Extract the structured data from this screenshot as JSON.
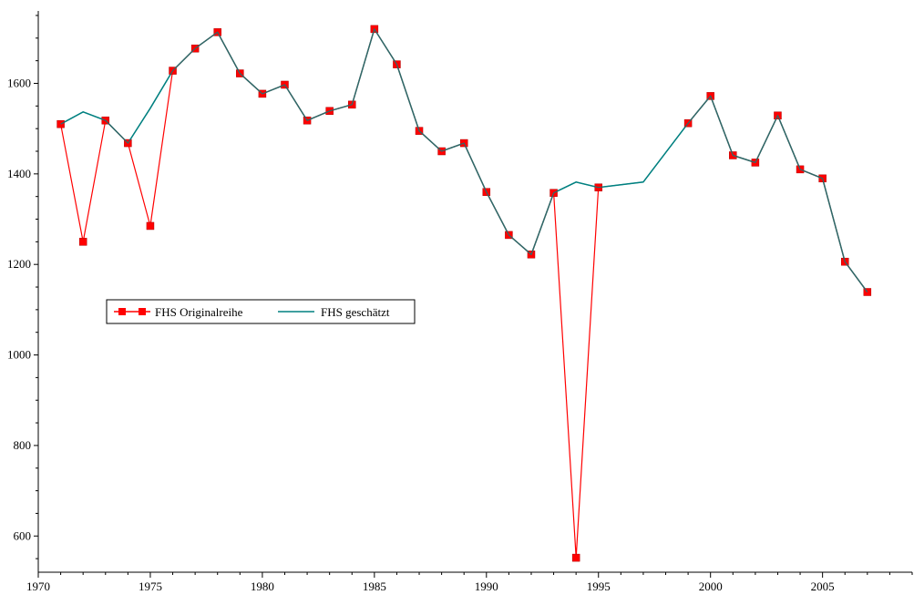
{
  "chart_data": {
    "type": "line",
    "title": "",
    "xlabel": "",
    "ylabel": "",
    "xlim": [
      1970,
      2009
    ],
    "ylim": [
      520,
      1760
    ],
    "x_ticks": [
      1970,
      1975,
      1980,
      1985,
      1990,
      1995,
      2000,
      2005
    ],
    "y_ticks": [
      600,
      800,
      1000,
      1200,
      1400,
      1600
    ],
    "grid": false,
    "legend_position": "middle-left",
    "series": [
      {
        "name": "FHS Originalreihe",
        "color": "#ff0000",
        "marker": "square",
        "points": [
          [
            1971,
            1510
          ],
          [
            1972,
            1250
          ],
          [
            1973,
            1518
          ],
          [
            1974,
            1468
          ],
          [
            1975,
            1285
          ],
          [
            1976,
            1628
          ],
          [
            1977,
            1677
          ],
          [
            1978,
            1713
          ],
          [
            1979,
            1622
          ],
          [
            1980,
            1577
          ],
          [
            1981,
            1597
          ],
          [
            1982,
            1518
          ],
          [
            1983,
            1539
          ],
          [
            1984,
            1553
          ],
          [
            1985,
            1720
          ],
          [
            1986,
            1642
          ],
          [
            1987,
            1495
          ],
          [
            1988,
            1450
          ],
          [
            1989,
            1468
          ],
          [
            1990,
            1360
          ],
          [
            1991,
            1265
          ],
          [
            1992,
            1222
          ],
          [
            1993,
            1358
          ],
          [
            1994,
            552
          ],
          [
            1995,
            1370
          ]
        ],
        "points_segment2": [
          [
            1999,
            1512
          ],
          [
            2000,
            1572
          ],
          [
            2001,
            1441
          ],
          [
            2002,
            1425
          ],
          [
            2003,
            1529
          ],
          [
            2004,
            1410
          ],
          [
            2005,
            1390
          ],
          [
            2006,
            1206
          ],
          [
            2007,
            1139
          ]
        ]
      },
      {
        "name": "FHS geschätzt",
        "color": "#008080",
        "points": [
          [
            1971,
            1510
          ],
          [
            1972,
            1537
          ],
          [
            1973,
            1518
          ],
          [
            1974,
            1468
          ],
          [
            1975,
            1545
          ],
          [
            1976,
            1628
          ],
          [
            1977,
            1677
          ],
          [
            1978,
            1713
          ],
          [
            1979,
            1622
          ],
          [
            1980,
            1577
          ],
          [
            1981,
            1597
          ],
          [
            1982,
            1518
          ],
          [
            1983,
            1539
          ],
          [
            1984,
            1553
          ],
          [
            1985,
            1720
          ],
          [
            1986,
            1642
          ],
          [
            1987,
            1495
          ],
          [
            1988,
            1450
          ],
          [
            1989,
            1468
          ],
          [
            1990,
            1360
          ],
          [
            1991,
            1265
          ],
          [
            1992,
            1222
          ],
          [
            1993,
            1358
          ],
          [
            1994,
            1382
          ],
          [
            1995,
            1370
          ],
          [
            1997,
            1382
          ],
          [
            1999,
            1512
          ],
          [
            2000,
            1572
          ],
          [
            2001,
            1441
          ],
          [
            2002,
            1425
          ],
          [
            2003,
            1529
          ],
          [
            2004,
            1410
          ],
          [
            2005,
            1390
          ],
          [
            2006,
            1206
          ],
          [
            2007,
            1139
          ]
        ]
      }
    ]
  }
}
